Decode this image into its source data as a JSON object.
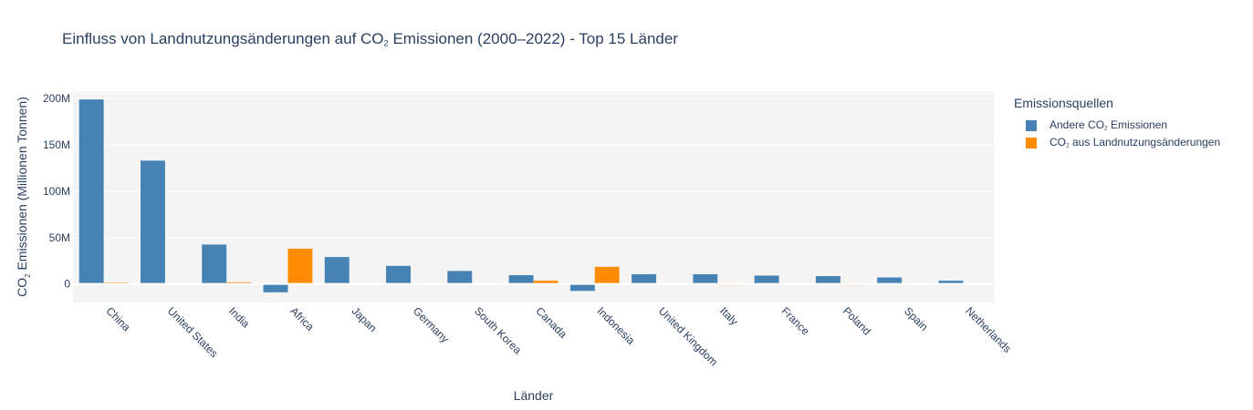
{
  "chart_data": {
    "type": "bar",
    "title_parts": [
      "Einfluss von Landnutzungsänderungen auf CO",
      "2",
      " Emissionen (2000–2022) - Top 15 Länder"
    ],
    "xlabel": "Länder",
    "ylabel_parts": [
      "CO",
      "2",
      " Emissionen (Millionen Tonnen)"
    ],
    "ylim": [
      -20000000,
      208000000
    ],
    "yticks": [
      0,
      50000000,
      100000000,
      150000000,
      200000000
    ],
    "ytick_labels": [
      "0",
      "50M",
      "100M",
      "150M",
      "200M"
    ],
    "grid": true,
    "legend_position": "right",
    "legend_title": "Emissionsquellen",
    "categories": [
      "China",
      "United States",
      "India",
      "Africa",
      "Japan",
      "Germany",
      "South Korea",
      "Canada",
      "Indonesia",
      "United Kingdom",
      "Italy",
      "France",
      "Poland",
      "Spain",
      "Netherlands"
    ],
    "series": [
      {
        "name_parts": [
          "Andere CO",
          "2",
          " Emissionen"
        ],
        "color": "#4682b4",
        "values": [
          199000000,
          133000000,
          42500000,
          -9000000,
          29000000,
          19500000,
          14000000,
          9500000,
          -7500000,
          10500000,
          10500000,
          9000000,
          8500000,
          7000000,
          3500000
        ]
      },
      {
        "name_parts": [
          "CO",
          "2",
          " aus Landnutzungsänderungen"
        ],
        "color": "#ff8c00",
        "values": [
          1500000,
          500000,
          1800000,
          38000000,
          0,
          0,
          500000,
          3500000,
          18500000,
          300000,
          -1000000,
          -500000,
          -1000000,
          300000,
          200000
        ]
      }
    ]
  },
  "colors": {
    "plot_background": "#f4f4f4",
    "gridline": "#ffffff",
    "text": "#2a3f5f"
  }
}
